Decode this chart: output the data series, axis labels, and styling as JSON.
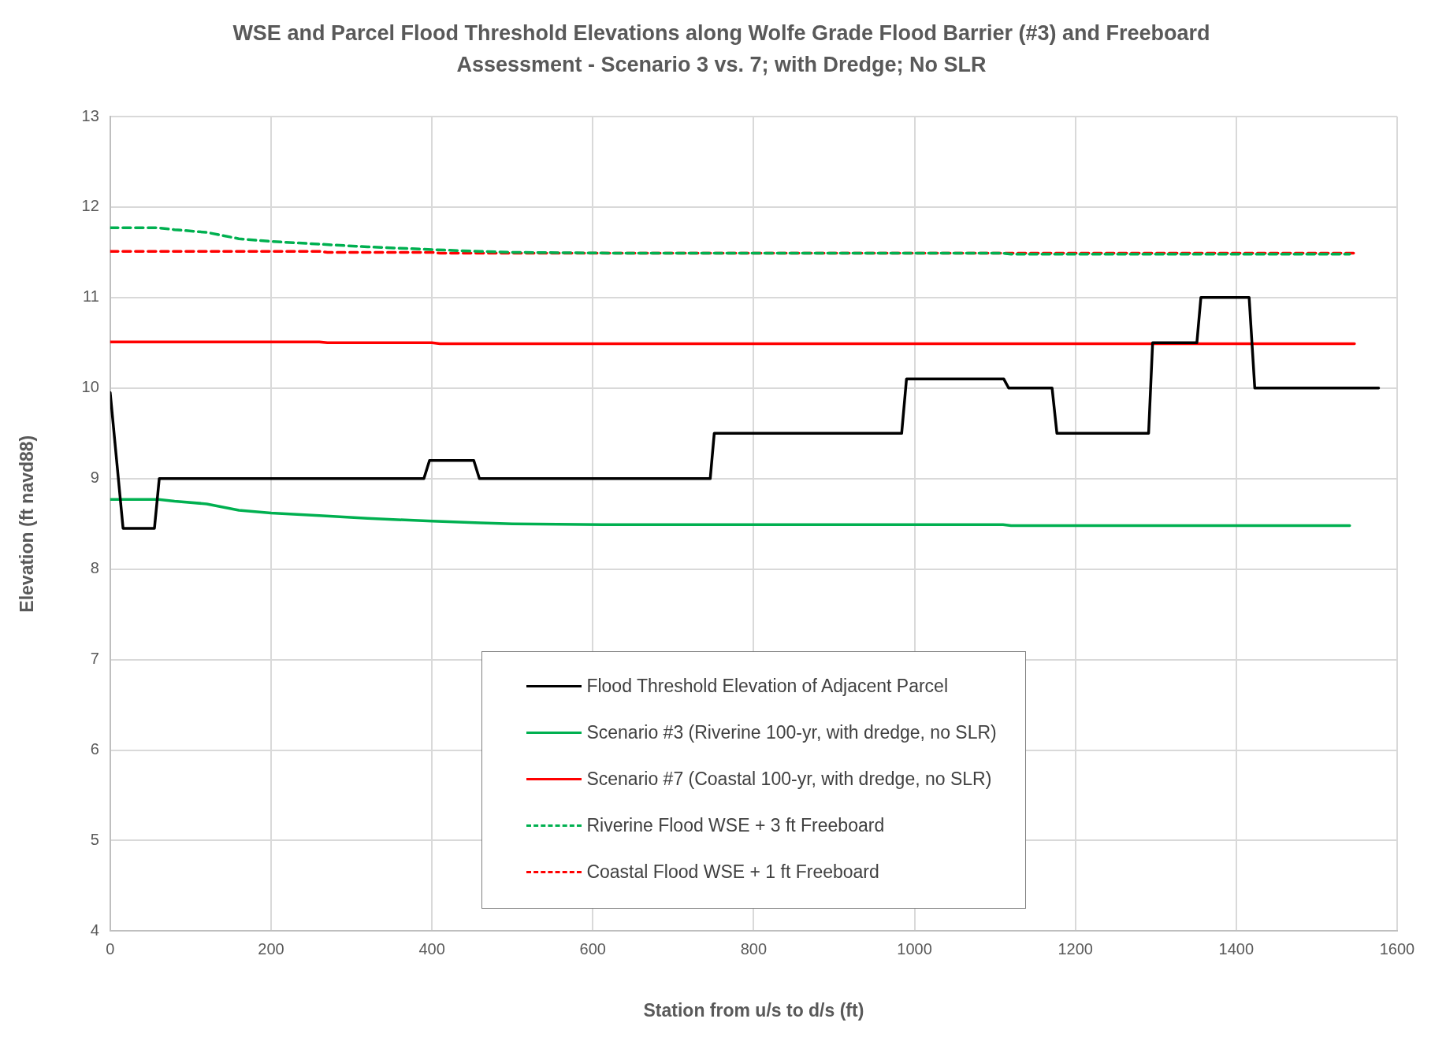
{
  "chart_data": {
    "type": "line",
    "title": "WSE and Parcel Flood Threshold Elevations along Wolfe Grade Flood Barrier (#3) and Freeboard Assessment - Scenario 3 vs. 7; with Dredge; No SLR",
    "xlabel": "Station from u/s to d/s (ft)",
    "ylabel": "Elevation (ft navd88)",
    "xlim": [
      0,
      1600
    ],
    "xticks": [
      0,
      200,
      400,
      600,
      800,
      1000,
      1200,
      1400,
      1600
    ],
    "ylim": [
      4,
      13
    ],
    "yticks": [
      4,
      5,
      6,
      7,
      8,
      9,
      10,
      11,
      12,
      13
    ],
    "grid": true,
    "legend": "bottom",
    "marker": "none",
    "series": [
      {
        "name": "Flood Threshold Elevation of Adjacent Parcel",
        "color": "#000000",
        "line_style": "solid",
        "x": [
          0,
          16,
          55,
          61,
          390,
          397,
          452,
          459,
          746,
          751,
          984,
          990,
          1111,
          1117,
          1171,
          1177,
          1291,
          1296,
          1351,
          1356,
          1416,
          1423,
          1577
        ],
        "values": [
          9.95,
          8.45,
          8.45,
          9.0,
          9.0,
          9.2,
          9.2,
          9.0,
          9.0,
          9.5,
          9.5,
          10.1,
          10.1,
          10.0,
          10.0,
          9.5,
          9.5,
          10.5,
          10.5,
          11.0,
          11.0,
          10.0,
          10.0
        ]
      },
      {
        "name": "Scenario #3 (Riverine 100-yr, with dredge, no SLR)",
        "color": "#00b050",
        "line_style": "solid",
        "x": [
          0,
          60,
          80,
          120,
          160,
          200,
          260,
          320,
          400,
          460,
          500,
          630,
          1110,
          1120,
          1541
        ],
        "values": [
          8.77,
          8.77,
          8.75,
          8.72,
          8.65,
          8.62,
          8.59,
          8.56,
          8.53,
          8.51,
          8.5,
          8.49,
          8.49,
          8.48,
          8.48
        ]
      },
      {
        "name": "Scenario #7 (Coastal 100-yr, with dredge, no SLR)",
        "color": "#ff0000",
        "line_style": "solid",
        "x": [
          0,
          260,
          270,
          400,
          410,
          1547
        ],
        "values": [
          10.51,
          10.51,
          10.5,
          10.5,
          10.49,
          10.49
        ]
      },
      {
        "name": "Riverine Flood WSE + 3 ft Freeboard",
        "color": "#00b050",
        "line_style": "dashed",
        "x": [
          0,
          60,
          80,
          120,
          160,
          200,
          260,
          320,
          400,
          460,
          500,
          630,
          1110,
          1120,
          1541
        ],
        "values": [
          11.77,
          11.77,
          11.75,
          11.72,
          11.65,
          11.62,
          11.59,
          11.56,
          11.53,
          11.51,
          11.5,
          11.49,
          11.49,
          11.48,
          11.48
        ]
      },
      {
        "name": "Coastal Flood WSE + 1 ft Freeboard",
        "color": "#ff0000",
        "line_style": "dashed",
        "x": [
          0,
          260,
          270,
          400,
          410,
          1547
        ],
        "values": [
          11.51,
          11.51,
          11.5,
          11.5,
          11.49,
          11.49
        ]
      }
    ]
  }
}
